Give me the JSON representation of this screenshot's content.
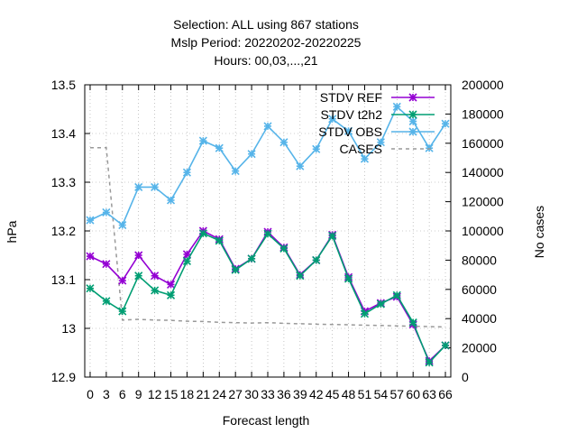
{
  "chart_data": {
    "type": "line",
    "title_lines": [
      "Selection: ALL using   867 stations",
      "Mslp   Period: 20220202-20220225",
      "Hours:  00,03,...,21"
    ],
    "xlabel": "Forecast length",
    "ylabel": "hPa",
    "y2label": "No cases",
    "x": [
      0,
      3,
      6,
      9,
      12,
      15,
      18,
      21,
      24,
      27,
      30,
      33,
      36,
      39,
      42,
      45,
      48,
      51,
      54,
      57,
      60,
      63,
      66
    ],
    "x_tick_labels": [
      "0",
      "3",
      "6",
      "9",
      "12",
      "15",
      "18",
      "21",
      "24",
      "27",
      "30",
      "33",
      "36",
      "39",
      "42",
      "45",
      "48",
      "51",
      "54",
      "57",
      "60",
      "63",
      "66"
    ],
    "xlim": [
      -1,
      67
    ],
    "ylim": [
      12.9,
      13.5
    ],
    "y_ticks": [
      12.9,
      13.0,
      13.1,
      13.2,
      13.3,
      13.4,
      13.5
    ],
    "y_tick_labels": [
      "12.9",
      "13",
      "13.1",
      "13.2",
      "13.3",
      "13.4",
      "13.5"
    ],
    "y2lim": [
      0,
      200000
    ],
    "y2_ticks": [
      0,
      20000,
      40000,
      60000,
      80000,
      100000,
      120000,
      140000,
      160000,
      180000,
      200000
    ],
    "y2_tick_labels": [
      "0",
      "20000",
      "40000",
      "60000",
      "80000",
      "100000",
      "120000",
      "140000",
      "160000",
      "180000",
      "200000"
    ],
    "grid": true,
    "legend_position": "top-right",
    "series": [
      {
        "name": "STDV REF",
        "color": "#9400d3",
        "axis": "left",
        "values": [
          13.148,
          13.132,
          13.098,
          13.15,
          13.108,
          13.09,
          13.152,
          13.2,
          13.183,
          13.122,
          13.143,
          13.198,
          13.166,
          13.11,
          13.14,
          13.192,
          13.105,
          13.035,
          13.052,
          13.065,
          13.008,
          12.933,
          12.965
        ]
      },
      {
        "name": "STDV t2h2",
        "color": "#009e73",
        "axis": "left",
        "values": [
          13.082,
          13.056,
          13.035,
          13.108,
          13.078,
          13.068,
          13.138,
          13.195,
          13.18,
          13.12,
          13.143,
          13.194,
          13.164,
          13.108,
          13.14,
          13.19,
          13.102,
          13.03,
          13.05,
          13.068,
          13.012,
          12.93,
          12.965
        ]
      },
      {
        "name": "STDV OBS",
        "color": "#56b4e9",
        "axis": "left",
        "values": [
          13.222,
          13.238,
          13.212,
          13.29,
          13.29,
          13.263,
          13.32,
          13.385,
          13.37,
          13.323,
          13.358,
          13.415,
          13.382,
          13.333,
          13.368,
          13.43,
          13.405,
          13.348,
          13.382,
          13.455,
          13.425,
          13.37,
          13.42
        ]
      },
      {
        "name": "CASES",
        "color": "#999999",
        "axis": "right",
        "dashed": true,
        "values": [
          157000,
          157000,
          39000,
          39500,
          39000,
          38800,
          38200,
          38000,
          37500,
          37200,
          37000,
          37200,
          36800,
          36500,
          36200,
          36000,
          35800,
          35500,
          35300,
          35000,
          34800,
          34500,
          34300
        ]
      }
    ]
  }
}
